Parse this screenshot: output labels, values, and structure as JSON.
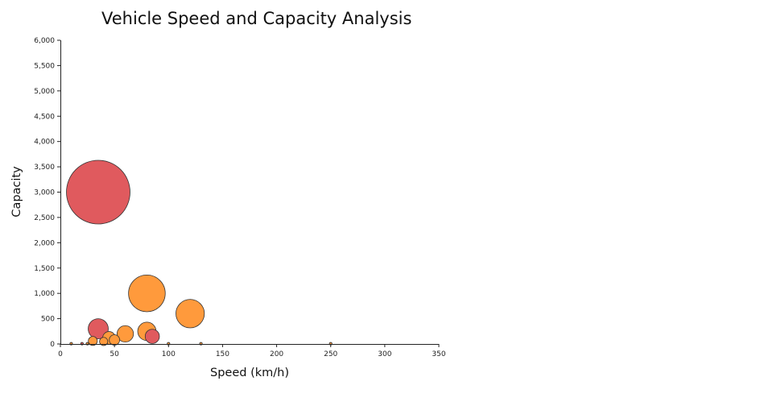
{
  "chart_data": {
    "type": "scatter",
    "title": "Vehicle Speed and Capacity Analysis",
    "xlabel": "Speed (km/h)",
    "ylabel": "Capacity",
    "xlim": [
      0,
      350
    ],
    "ylim": [
      0,
      6000
    ],
    "x_ticks": [
      0,
      50,
      100,
      150,
      200,
      250,
      300,
      350
    ],
    "x_tick_labels": [
      "0",
      "50",
      "100",
      "150",
      "200",
      "250",
      "300",
      "350"
    ],
    "y_ticks": [
      0,
      500,
      1000,
      1500,
      2000,
      2500,
      3000,
      3500,
      4000,
      4500,
      5000,
      5500,
      6000
    ],
    "y_tick_labels": [
      "0",
      "500",
      "1,000",
      "1,500",
      "2,000",
      "2,500",
      "3,000",
      "3,500",
      "4,000",
      "4,500",
      "5,000",
      "5,500",
      "6,000"
    ],
    "grid": false,
    "legend": "none",
    "marker_size_encodes": "capacity",
    "colors": {
      "red": "#e05a5e",
      "orange": "#ff9a3c"
    },
    "points": [
      {
        "x": 35,
        "y": 3000,
        "color": "red"
      },
      {
        "x": 80,
        "y": 1000,
        "color": "orange"
      },
      {
        "x": 120,
        "y": 600,
        "color": "orange"
      },
      {
        "x": 35,
        "y": 300,
        "color": "red"
      },
      {
        "x": 80,
        "y": 250,
        "color": "orange"
      },
      {
        "x": 60,
        "y": 200,
        "color": "orange"
      },
      {
        "x": 85,
        "y": 150,
        "color": "red"
      },
      {
        "x": 45,
        "y": 120,
        "color": "orange"
      },
      {
        "x": 50,
        "y": 80,
        "color": "orange"
      },
      {
        "x": 30,
        "y": 60,
        "color": "orange"
      },
      {
        "x": 40,
        "y": 50,
        "color": "orange"
      },
      {
        "x": 10,
        "y": 5,
        "color": "orange"
      },
      {
        "x": 20,
        "y": 5,
        "color": "red"
      },
      {
        "x": 25,
        "y": 5,
        "color": "orange"
      },
      {
        "x": 130,
        "y": 5,
        "color": "orange"
      },
      {
        "x": 250,
        "y": 5,
        "color": "orange"
      },
      {
        "x": 100,
        "y": 5,
        "color": "orange"
      }
    ]
  }
}
